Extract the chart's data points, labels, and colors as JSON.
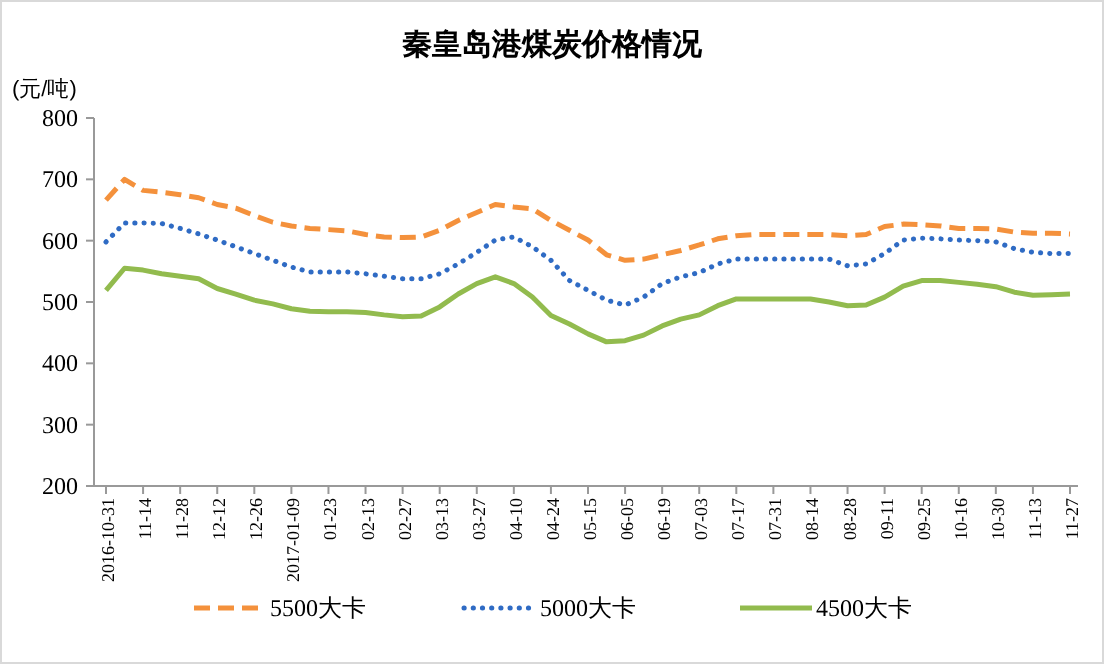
{
  "chart_data": {
    "type": "line",
    "title": "秦皇岛港煤炭价格情况",
    "ylabel": "(元/吨)",
    "categories": [
      "2016-10-31",
      null,
      "11-14",
      null,
      "11-28",
      null,
      "12-12",
      null,
      "12-26",
      null,
      "2017-01-09",
      null,
      "01-23",
      null,
      "02-13",
      null,
      "02-27",
      null,
      "03-13",
      null,
      "03-27",
      null,
      "04-10",
      null,
      "04-24",
      null,
      "05-15",
      null,
      "06-05",
      null,
      "06-19",
      null,
      "07-03",
      null,
      "07-17",
      null,
      "07-31",
      null,
      "08-14",
      null,
      "08-28",
      null,
      "09-11",
      null,
      "09-25",
      null,
      "10-16",
      null,
      "10-30",
      null,
      "11-13",
      null,
      "11-27"
    ],
    "series": [
      {
        "name": "5500大卡",
        "color": "#f4913c",
        "line_style": "dashed",
        "values": [
          666,
          700,
          682,
          679,
          675,
          670,
          659,
          653,
          641,
          630,
          624,
          620,
          618,
          616,
          610,
          606,
          605,
          606,
          617,
          633,
          646,
          659,
          655,
          652,
          633,
          617,
          601,
          577,
          568,
          570,
          577,
          584,
          593,
          603,
          608,
          610,
          610,
          610,
          610,
          610,
          608,
          610,
          623,
          627,
          626,
          624,
          620,
          620,
          619,
          614,
          612,
          612,
          611
        ]
      },
      {
        "name": "5000大卡",
        "color": "#2f6bc4",
        "line_style": "dotted",
        "values": [
          598,
          629,
          629,
          628,
          620,
          611,
          601,
          590,
          579,
          568,
          557,
          549,
          549,
          549,
          546,
          542,
          538,
          538,
          546,
          562,
          581,
          601,
          606,
          590,
          568,
          535,
          519,
          503,
          495,
          508,
          530,
          541,
          548,
          562,
          570,
          570,
          570,
          570,
          570,
          570,
          559,
          562,
          579,
          601,
          604,
          603,
          601,
          600,
          598,
          587,
          581,
          579,
          579
        ]
      },
      {
        "name": "4500大卡",
        "color": "#92bb4e",
        "line_style": "solid",
        "values": [
          519,
          555,
          552,
          546,
          542,
          538,
          522,
          513,
          503,
          497,
          489,
          485,
          484,
          484,
          483,
          479,
          476,
          477,
          492,
          513,
          530,
          541,
          530,
          508,
          478,
          464,
          448,
          435,
          437,
          446,
          461,
          472,
          479,
          494,
          505,
          505,
          505,
          505,
          505,
          500,
          494,
          495,
          508,
          526,
          535,
          535,
          532,
          529,
          525,
          516,
          511,
          512,
          513
        ]
      }
    ],
    "ylim": [
      200,
      800
    ],
    "yticks": [
      200,
      300,
      400,
      500,
      600,
      700,
      800
    ],
    "grid": false,
    "legend": "bottom"
  }
}
